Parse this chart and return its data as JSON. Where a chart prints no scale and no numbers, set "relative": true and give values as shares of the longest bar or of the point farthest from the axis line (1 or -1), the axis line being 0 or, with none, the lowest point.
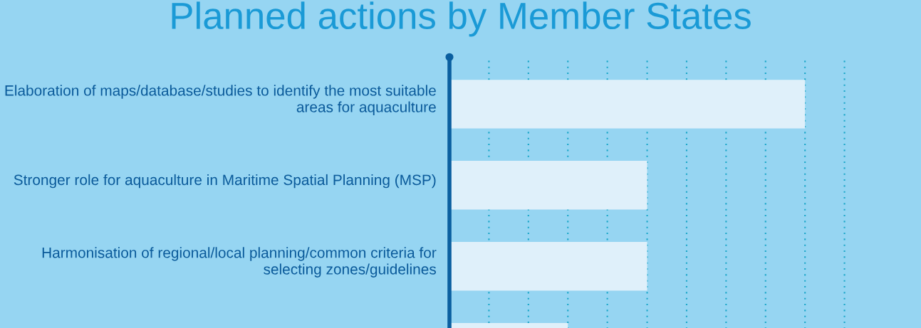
{
  "chart_data": {
    "type": "bar",
    "orientation": "horizontal",
    "relative": true,
    "title": "Planned actions by Member States",
    "categories": [
      "Elaboration of maps/database/studies to identify the most suitable areas for aquaculture",
      "Stronger role for aquaculture in Maritime Spatial Planning (MSP)",
      "Harmonisation of regional/local planning/common criteria for selecting zones/guidelines",
      null
    ],
    "values": [
      1,
      0.556,
      0.556,
      0.333
    ],
    "color": "#dff0fa",
    "ref_lines": [
      {
        "axis": "x",
        "value": 0.111,
        "color": "#1aa6c8",
        "line_style": "dotted"
      },
      {
        "axis": "x",
        "value": 0.222,
        "color": "#1aa6c8",
        "line_style": "dotted"
      },
      {
        "axis": "x",
        "value": 0.333,
        "color": "#1aa6c8",
        "line_style": "dotted"
      },
      {
        "axis": "x",
        "value": 0.444,
        "color": "#1aa6c8",
        "line_style": "dotted"
      },
      {
        "axis": "x",
        "value": 0.556,
        "color": "#1aa6c8",
        "line_style": "dotted"
      },
      {
        "axis": "x",
        "value": 0.667,
        "color": "#1aa6c8",
        "line_style": "dotted"
      },
      {
        "axis": "x",
        "value": 0.778,
        "color": "#1aa6c8",
        "line_style": "dotted"
      },
      {
        "axis": "x",
        "value": 0.889,
        "color": "#1aa6c8",
        "line_style": "dotted"
      },
      {
        "axis": "x",
        "value": 1,
        "color": "#1aa6c8",
        "line_style": "dotted"
      },
      {
        "axis": "x",
        "value": 1.111,
        "color": "#1aa6c8",
        "line_style": "dotted"
      }
    ]
  }
}
